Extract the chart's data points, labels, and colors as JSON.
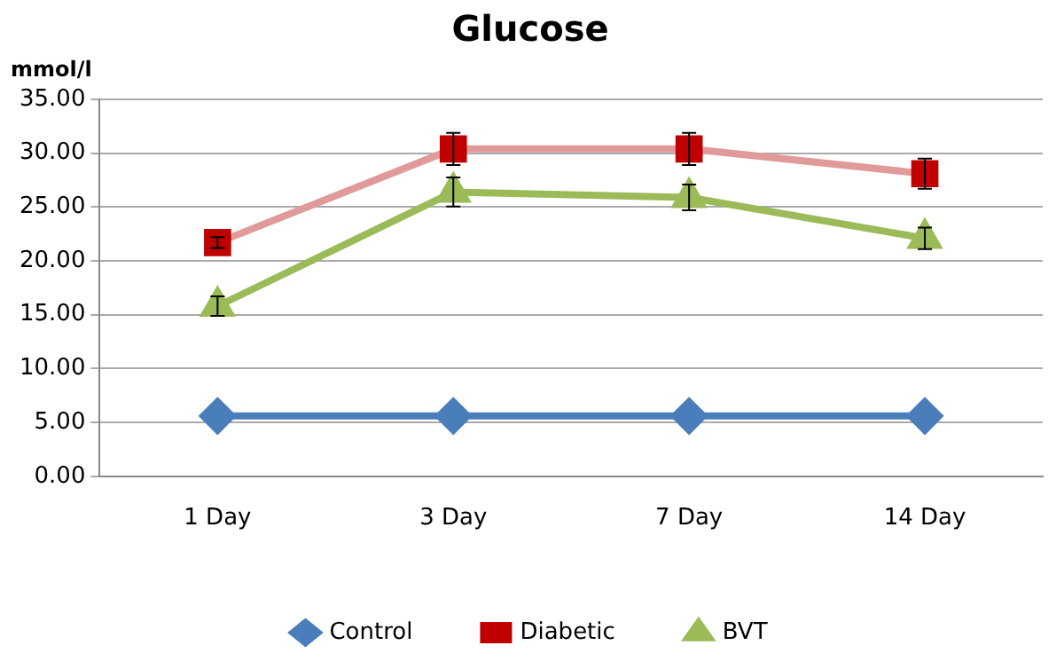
{
  "chart_data": {
    "type": "line",
    "title": "Glucose",
    "ylabel": "mmol/l",
    "categories": [
      "1 Day",
      "3 Day",
      "7 Day",
      "14 Day"
    ],
    "series": [
      {
        "name": "Control",
        "color": "#4a7ebb",
        "marker": "diamond",
        "values": [
          5.6,
          5.6,
          5.6,
          5.6
        ]
      },
      {
        "name": "Diabetic",
        "color": "#e09a9a",
        "colors": [
          "#c00000",
          "#c00000",
          "#c00000",
          "#c00000"
        ],
        "marker": "square",
        "values": [
          21.7,
          30.4,
          30.4,
          28.1
        ],
        "errors": [
          0.5,
          1.5,
          1.5,
          1.4
        ]
      },
      {
        "name": "BVT",
        "color": "#9bbb59",
        "marker": "triangle",
        "values": [
          15.8,
          26.4,
          25.9,
          22.1
        ],
        "errors": [
          0.9,
          1.35,
          1.2,
          1.0
        ]
      }
    ],
    "ylim": [
      0,
      35
    ],
    "yticks": [
      {
        "value": 0,
        "label": "0.00"
      },
      {
        "value": 5,
        "label": "5.00"
      },
      {
        "value": 10,
        "label": "10.00"
      },
      {
        "value": 15,
        "label": "15.00"
      },
      {
        "value": 20,
        "label": "20.00"
      },
      {
        "value": 25,
        "label": "25.00"
      },
      {
        "value": 30,
        "label": "30.00"
      },
      {
        "value": 35,
        "label": "35.00"
      }
    ],
    "grid": "y",
    "legend": "bottom"
  }
}
